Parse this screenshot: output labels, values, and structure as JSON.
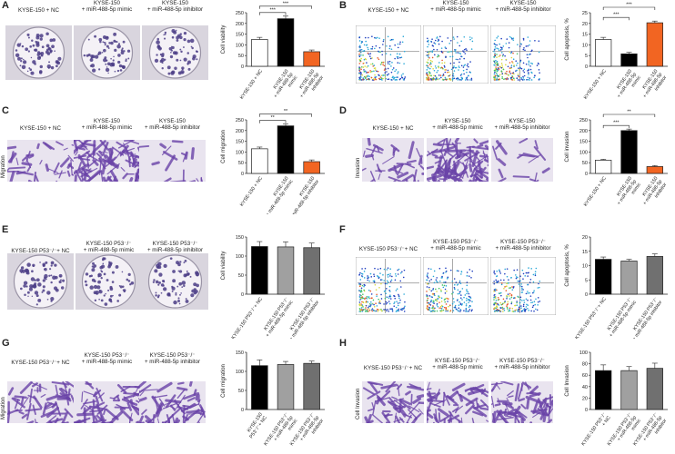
{
  "panels": [
    {
      "letter": "A",
      "kind": "colony",
      "side": "",
      "captions": [
        "KYSE-150 + NC",
        "KYSE-150\n+ miR-488-5p mimic",
        "KYSE-150\n+ miR-488-5p inhibitor"
      ]
    },
    {
      "letter": "B",
      "kind": "flow",
      "side": "",
      "captions": [
        "KYSE-150 + NC",
        "KYSE-150\n+ miR-488-5p mimic",
        "KYSE-150\n+ miR-488-5p inhibitor"
      ]
    },
    {
      "letter": "C",
      "kind": "migration",
      "side": "Migration",
      "captions": [
        "KYSE-150 + NC",
        "KYSE-150\n+ miR-488-5p mimic",
        "KYSE-150\n+ miR-488-5p inhibitor"
      ]
    },
    {
      "letter": "D",
      "kind": "migration",
      "side": "Invasion",
      "captions": [
        "KYSE-150 + NC",
        "KYSE-150\n+ miR-488-5p mimic",
        "KYSE-150\n+ miR-488-5p inhibitor"
      ]
    },
    {
      "letter": "E",
      "kind": "colony",
      "side": "",
      "captions": [
        "KYSE-150 P53⁻/⁻+ NC",
        "KYSE-150 P53⁻/⁻\n+ miR-488-5p mimic",
        "KYSE-150 P53⁻/⁻\n+ miR-488-5p inhibitor"
      ]
    },
    {
      "letter": "F",
      "kind": "flow",
      "side": "",
      "captions": [
        "KYSE-150 P53⁻/⁻+ NC",
        "KYSE-150 P53⁻/⁻\n+ miR-488-5p mimic",
        "KYSE-150 P53⁻/⁻\n+ miR-488-5p inhibitor"
      ]
    },
    {
      "letter": "G",
      "kind": "migration",
      "side": "Migration",
      "captions": [
        "KYSE-150 P53⁻/⁻+ NC",
        "KYSE-150 P53⁻/⁻\n+ miR-488-5p mimic",
        "KYSE-150 P53⁻/⁻\n+ miR-488-5p inhibitor"
      ]
    },
    {
      "letter": "H",
      "kind": "migration",
      "side": "Cell Invasion",
      "captions": [
        "KYSE-150 P53⁻/⁻+ NC",
        "KYSE-150 P53⁻/⁻\n+ miR-488-5p mimic",
        "KYSE-150 P53⁻/⁻\n+ miR-488-5p inhibitor"
      ]
    }
  ],
  "chart_data": [
    {
      "panel": "A",
      "type": "bar",
      "ylabel": "Cell viability",
      "ylim": [
        0,
        250
      ],
      "yticks": [
        0,
        50,
        100,
        150,
        200,
        250
      ],
      "categories": [
        "KYSE-150 + NC",
        "KYSE-150\n+ miR-488-5p\nmimic",
        "KYSE-150\n+ miR-488-5p\ninhibitor"
      ],
      "values": [
        125,
        222,
        68
      ],
      "errors": [
        10,
        12,
        8
      ],
      "colors": [
        "#ffffff",
        "#000000",
        "#f26522"
      ],
      "sig": [
        {
          "from": 0,
          "to": 1,
          "label": "***"
        },
        {
          "from": 0,
          "to": 2,
          "label": "***"
        }
      ]
    },
    {
      "panel": "B",
      "type": "bar",
      "ylabel": "Cell apoptosis, %",
      "ylim": [
        0,
        25
      ],
      "yticks": [
        0,
        5,
        10,
        15,
        20,
        25
      ],
      "categories": [
        "KYSE-150 + NC",
        "KYSE-150\n+ miR-488-5p\nmimic",
        "KYSE-150\n+ miR-488-5p\ninhibitor"
      ],
      "values": [
        12.5,
        5.8,
        20.3
      ],
      "errors": [
        1.0,
        0.7,
        0.8
      ],
      "colors": [
        "#ffffff",
        "#000000",
        "#f26522"
      ],
      "sig": [
        {
          "from": 0,
          "to": 1,
          "label": "***"
        },
        {
          "from": 0,
          "to": 2,
          "label": "***"
        }
      ]
    },
    {
      "panel": "C",
      "type": "bar",
      "ylabel": "Cell migration",
      "ylim": [
        0,
        250
      ],
      "yticks": [
        0,
        50,
        100,
        150,
        200,
        250
      ],
      "categories": [
        "KYSE-150 + NC",
        "KYSE-150\n+ miR-488-5p mimic",
        "KYSE-150\n+ miR-488-5p inhibitor"
      ],
      "values": [
        115,
        222,
        55
      ],
      "errors": [
        8,
        8,
        8
      ],
      "colors": [
        "#ffffff",
        "#000000",
        "#f26522"
      ],
      "sig": [
        {
          "from": 0,
          "to": 1,
          "label": "**"
        },
        {
          "from": 0,
          "to": 2,
          "label": "**"
        }
      ]
    },
    {
      "panel": "D",
      "type": "bar",
      "ylabel": "Cell invasion",
      "ylim": [
        0,
        250
      ],
      "yticks": [
        0,
        50,
        100,
        150,
        200,
        250
      ],
      "categories": [
        "KYSE-150 + NC",
        "KYSE-150\n+ miR-488-5p\nmimic",
        "KYSE-150\n+ miR-488-5p\ninhibitor"
      ],
      "values": [
        62,
        200,
        32
      ],
      "errors": [
        4,
        7,
        5
      ],
      "colors": [
        "#ffffff",
        "#000000",
        "#f26522"
      ],
      "sig": [
        {
          "from": 0,
          "to": 1,
          "label": "***"
        },
        {
          "from": 0,
          "to": 2,
          "label": "**"
        }
      ]
    },
    {
      "panel": "E",
      "type": "bar",
      "ylabel": "Cell viability",
      "ylim": [
        0,
        150
      ],
      "yticks": [
        0,
        50,
        100,
        150
      ],
      "categories": [
        "KYSE-150 P53⁻/⁻+ NC",
        "KYSE-150 P53⁻/⁻\n+ miR-488-5p mimic",
        "KYSE-150 P53⁻/⁻\n+ miR-488-5p inhibitor"
      ],
      "values": [
        125,
        124,
        122
      ],
      "errors": [
        13,
        13,
        12
      ],
      "colors": [
        "#000000",
        "#a0a0a0",
        "#707070"
      ],
      "sig": []
    },
    {
      "panel": "F",
      "type": "bar",
      "ylabel": "Cell apoptosis, %",
      "ylim": [
        0,
        20
      ],
      "yticks": [
        0,
        5,
        10,
        15,
        20
      ],
      "categories": [
        "KYSE-150 P53⁻/⁻+ NC",
        "KYSE-150 P53⁻/⁻\n+ miR-488-5p mimic",
        "KYSE-150 P53⁻/⁻\n+ miR-488-5p inhibitor"
      ],
      "values": [
        12.2,
        11.6,
        13.2
      ],
      "errors": [
        0.8,
        0.6,
        0.9
      ],
      "colors": [
        "#000000",
        "#a0a0a0",
        "#707070"
      ],
      "sig": []
    },
    {
      "panel": "G",
      "type": "bar",
      "ylabel": "Cell migration",
      "ylim": [
        0,
        150
      ],
      "yticks": [
        0,
        50,
        100,
        150
      ],
      "categories": [
        "KYSE-150\nP53⁻/⁻+ NC",
        "KYSE-150 P53⁻/⁻\n+ miR-488-5p\nmimic",
        "KYSE-150 P53⁻/⁻\n+ miR-488-5p\ninhibitor"
      ],
      "values": [
        115,
        118,
        121
      ],
      "errors": [
        15,
        8,
        6
      ],
      "colors": [
        "#000000",
        "#a0a0a0",
        "#707070"
      ],
      "sig": []
    },
    {
      "panel": "H",
      "type": "bar",
      "ylabel": "Cell Invasion",
      "ylim": [
        0,
        100
      ],
      "yticks": [
        0,
        20,
        40,
        60,
        80,
        100
      ],
      "categories": [
        "KYSE-150 P53⁻/⁻\n+ NC",
        "KYSE-150 P53⁻/⁻\n+ miR-488-5p\nmimic",
        "KYSE-150 P53⁻/⁻\n+ miR-488-5p\ninhibitor"
      ],
      "values": [
        68,
        68,
        72
      ],
      "errors": [
        10,
        7,
        9
      ],
      "colors": [
        "#000000",
        "#a0a0a0",
        "#707070"
      ],
      "sig": []
    }
  ]
}
